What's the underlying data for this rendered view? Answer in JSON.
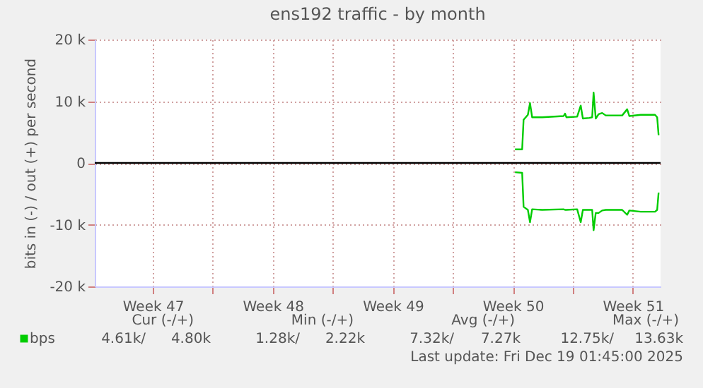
{
  "chart_data": {
    "type": "line",
    "title": "ens192 traffic - by month",
    "ylabel": "bits in (-) / out (+) per second",
    "x": [
      "2025-12-11T15:00",
      "2025-12-12T01:00",
      "2025-12-12T03:00",
      "2025-12-12T09:00",
      "2025-12-12T12:00",
      "2025-12-12T15:00",
      "2025-12-13T05:00",
      "2025-12-14T11:00",
      "2025-12-14T13:00",
      "2025-12-14T15:00",
      "2025-12-15T06:00",
      "2025-12-15T11:00",
      "2025-12-15T14:00",
      "2025-12-15T23:00",
      "2025-12-16T03:00",
      "2025-12-16T05:00",
      "2025-12-16T08:00",
      "2025-12-16T12:00",
      "2025-12-16T17:00",
      "2025-12-16T22:00",
      "2025-12-17T21:00",
      "2025-12-18T04:00",
      "2025-12-18T07:00",
      "2025-12-18T23:00",
      "2025-12-19T19:00",
      "2025-12-19T22:00",
      "2025-12-20T00:00"
    ],
    "series": [
      {
        "name": "bps",
        "color": "#00cc00",
        "values": [
          2200,
          2200,
          7000,
          7800,
          9700,
          7400,
          7400,
          7600,
          8000,
          7400,
          7500,
          9300,
          7200,
          7300,
          7400,
          11400,
          7200,
          7900,
          8100,
          7700,
          7700,
          8700,
          7600,
          7800,
          7800,
          7400,
          4500
        ]
      },
      {
        "color": "#00cc00",
        "values": [
          -1500,
          -1600,
          -7100,
          -7600,
          -9600,
          -7500,
          -7600,
          -7500,
          -7600,
          -7600,
          -7500,
          -9600,
          -7600,
          -7600,
          -7600,
          -10900,
          -8100,
          -8100,
          -7700,
          -7600,
          -7600,
          -8400,
          -7700,
          -7900,
          -7900,
          -7600,
          -4800
        ]
      }
    ],
    "xlim": [
      "2025-11-17T02:45",
      "2025-12-20T02:45"
    ],
    "xticks": [
      {
        "value": "2025-11-20T12:00",
        "label": "Week 47"
      },
      {
        "value": "2025-11-24T00:00",
        "label": null
      },
      {
        "value": "2025-11-27T12:00",
        "label": "Week 48"
      },
      {
        "value": "2025-12-01T00:00",
        "label": null
      },
      {
        "value": "2025-12-04T12:00",
        "label": "Week 49"
      },
      {
        "value": "2025-12-08T00:00",
        "label": null
      },
      {
        "value": "2025-12-11T12:00",
        "label": "Week 50"
      },
      {
        "value": "2025-12-15T00:00",
        "label": null
      },
      {
        "value": "2025-12-18T12:00",
        "label": "Week 51"
      }
    ],
    "ylim": [
      -20000,
      20000
    ],
    "yticks": [
      {
        "value": -20000,
        "label": "-20 k"
      },
      {
        "value": -10000,
        "label": "-10 k"
      },
      {
        "value": 0,
        "label": "0"
      },
      {
        "value": 10000,
        "label": "10 k"
      },
      {
        "value": 20000,
        "label": "20 k"
      }
    ],
    "ref_lines": [
      {
        "axis": "y",
        "value": 0,
        "color": "#000000"
      }
    ],
    "annotations": [
      "Cur (-/+)",
      "Min (-/+)",
      "Avg (-/+)",
      "Max (-/+)",
      "4.61k/",
      "4.80k",
      "1.28k/",
      "2.22k",
      "7.32k/",
      "7.27k",
      "12.75k/",
      "13.63k",
      "Last update: Fri Dec 19 01:45:00 2025"
    ],
    "grid": true,
    "legend": "bottom left",
    "line_style": "solid",
    "marker": "none"
  }
}
